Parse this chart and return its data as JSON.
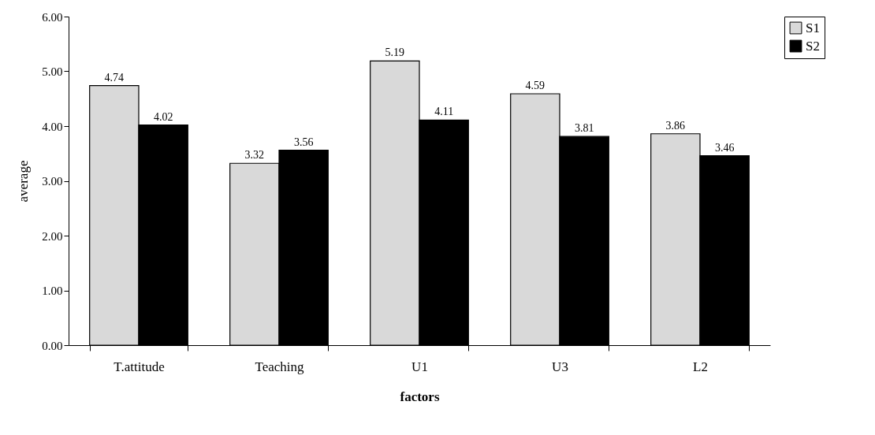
{
  "chart_data": {
    "type": "bar",
    "xlabel": "factors",
    "ylabel": "average",
    "categories": [
      "T.attitude",
      "Teaching",
      "U1",
      "U3",
      "L2"
    ],
    "series": [
      {
        "name": "S1",
        "color": "#d9d9d9",
        "values": [
          4.74,
          3.32,
          5.19,
          4.59,
          3.86
        ]
      },
      {
        "name": "S2",
        "color": "#000000",
        "values": [
          4.02,
          3.56,
          4.11,
          3.81,
          3.46
        ]
      }
    ],
    "ylim": [
      0,
      6
    ],
    "yticks": [
      {
        "value": 0,
        "label": "0.00"
      },
      {
        "value": 1,
        "label": "1.00"
      },
      {
        "value": 2,
        "label": "2.00"
      },
      {
        "value": 3,
        "label": "3.00"
      },
      {
        "value": 4,
        "label": "4.00"
      },
      {
        "value": 5,
        "label": "5.00"
      },
      {
        "value": 6,
        "label": "6.00"
      }
    ],
    "data_labels": true,
    "legend": "right",
    "grid": false
  }
}
